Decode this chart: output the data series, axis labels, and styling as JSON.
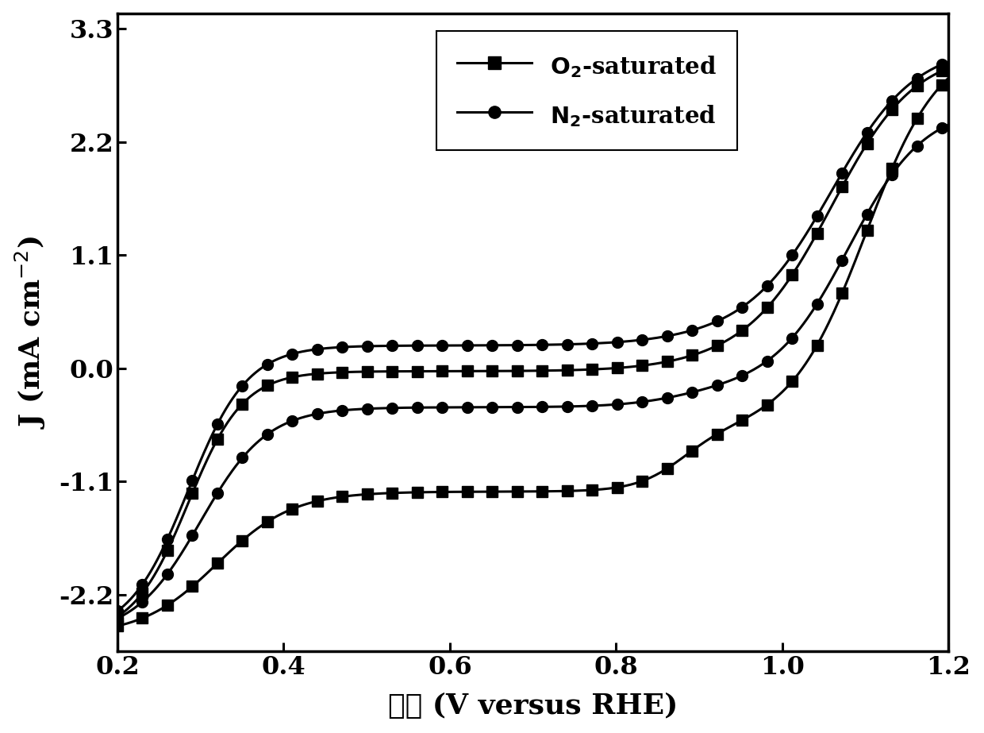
{
  "xlabel": "电位 (V versus RHE)",
  "ylabel": "J (mA cm$^{-2}$)",
  "xlim": [
    0.2,
    1.2
  ],
  "ylim": [
    -2.75,
    3.45
  ],
  "yticks": [
    -2.2,
    -1.1,
    0.0,
    1.1,
    2.2,
    3.3
  ],
  "xticks": [
    0.2,
    0.4,
    0.6,
    0.8,
    1.0,
    1.2
  ],
  "background_color": "#ffffff",
  "line_color": "#000000",
  "figsize": [
    12.4,
    9.23
  ],
  "dpi": 100
}
